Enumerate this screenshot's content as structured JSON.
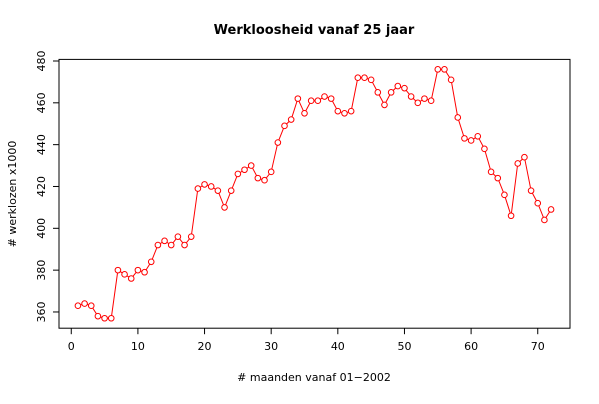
{
  "chart_data": {
    "type": "line",
    "title": "Werkloosheid vanaf 25 jaar",
    "xlabel": "# maanden vanaf 01−2002",
    "ylabel": "# werklozen x1000",
    "x": [
      1,
      2,
      3,
      4,
      5,
      6,
      7,
      8,
      9,
      10,
      11,
      12,
      13,
      14,
      15,
      16,
      17,
      18,
      19,
      20,
      21,
      22,
      23,
      24,
      25,
      26,
      27,
      28,
      29,
      30,
      31,
      32,
      33,
      34,
      35,
      36,
      37,
      38,
      39,
      40,
      41,
      42,
      43,
      44,
      45,
      46,
      47,
      48,
      49,
      50,
      51,
      52,
      53,
      54,
      55,
      56,
      57,
      58,
      59,
      60,
      61,
      62,
      63,
      64,
      65,
      66,
      67,
      68,
      69,
      70,
      71,
      72
    ],
    "series": [
      {
        "name": "werklozen",
        "color": "#ff0000",
        "values": [
          363,
          364,
          363,
          358,
          357,
          357,
          380,
          378,
          376,
          380,
          379,
          384,
          392,
          394,
          392,
          396,
          392,
          396,
          419,
          421,
          420,
          418,
          410,
          418,
          426,
          428,
          430,
          424,
          423,
          427,
          441,
          449,
          452,
          462,
          455,
          461,
          461,
          463,
          462,
          456,
          455,
          456,
          472,
          472,
          471,
          465,
          459,
          465,
          468,
          467,
          463,
          460,
          462,
          461,
          476,
          476,
          471,
          453,
          443,
          442,
          444,
          438,
          427,
          424,
          416,
          406,
          431,
          434,
          418,
          412,
          404,
          409
        ]
      }
    ],
    "xlim": [
      -1.84,
      74.84
    ],
    "ylim": [
      352.24,
      480.76
    ],
    "xticks": [
      0,
      10,
      20,
      30,
      40,
      50,
      60,
      70
    ],
    "yticks": [
      360,
      380,
      400,
      420,
      440,
      460,
      480
    ]
  }
}
